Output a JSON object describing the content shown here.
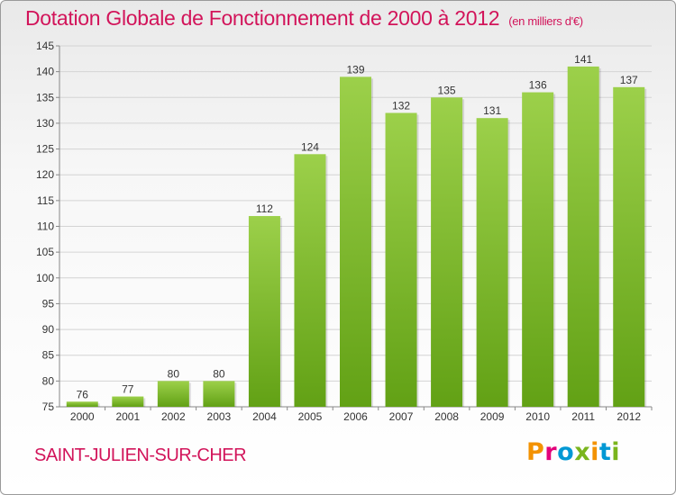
{
  "header": {
    "title": "Dotation Globale de Fonctionnement de 2000 à 2012",
    "unit": "(en milliers d'€)"
  },
  "footer": {
    "commune": "SAINT-JULIEN-SUR-CHER",
    "logo": "Proxiti"
  },
  "colors": {
    "accent": "#d2145a",
    "bar_top": "#9cd04a",
    "bar_bottom": "#62a115",
    "logo_letters": [
      "#f39200",
      "#e2007a",
      "#0098d4",
      "#7ab51d",
      "#f39200",
      "#0098d4",
      "#7ab51d"
    ]
  },
  "chart_data": {
    "type": "bar",
    "title": "Dotation Globale de Fonctionnement de 2000 à 2012",
    "subtitle": "(en milliers d'€)",
    "xlabel": "",
    "ylabel": "",
    "categories": [
      "2000",
      "2001",
      "2002",
      "2003",
      "2004",
      "2005",
      "2006",
      "2007",
      "2008",
      "2009",
      "2010",
      "2011",
      "2012"
    ],
    "values": [
      76,
      77,
      80,
      80,
      112,
      124,
      139,
      132,
      135,
      131,
      136,
      141,
      137
    ],
    "ylim": [
      75,
      145
    ],
    "yticks": [
      75,
      80,
      85,
      90,
      95,
      100,
      105,
      110,
      115,
      120,
      125,
      130,
      135,
      140,
      145
    ],
    "grid": true,
    "data_labels": true
  }
}
